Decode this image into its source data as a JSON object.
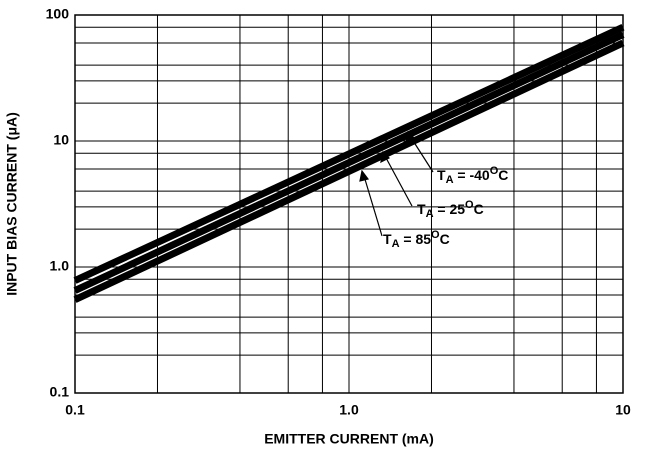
{
  "chart_data": {
    "type": "line",
    "xlabel": "EMITTER CURRENT (mA)",
    "ylabel": "INPUT BIAS CURRENT (μA)",
    "xscale": "log",
    "yscale": "log",
    "xlim": [
      0.1,
      10
    ],
    "ylim": [
      0.1,
      100
    ],
    "xticks": [
      0.1,
      {
        "value": 1,
        "label": "1.0"
      },
      10
    ],
    "yticks": [
      0.1,
      {
        "value": 1,
        "label": "1.0"
      },
      10,
      100
    ],
    "xgrid": [
      0.2,
      0.4,
      0.6,
      0.8,
      2,
      4,
      6,
      8
    ],
    "ygrid": [
      0.2,
      0.3,
      0.4,
      0.6,
      0.8,
      2,
      3,
      4,
      6,
      8,
      20,
      30,
      40,
      60,
      80
    ],
    "x": [
      0.1,
      10
    ],
    "series": [
      {
        "name": [
          "T",
          "A",
          " = -40",
          "O",
          "C"
        ],
        "color": "#000000",
        "values": [
          0.78,
          80
        ]
      },
      {
        "name": [
          "T",
          "A",
          " = 25",
          "O",
          "C"
        ],
        "color": "#000000",
        "values": [
          0.65,
          70
        ]
      },
      {
        "name": [
          "T",
          "A",
          " = 85",
          "O",
          "C"
        ],
        "color": "#000000",
        "values": [
          0.55,
          60
        ]
      }
    ]
  }
}
